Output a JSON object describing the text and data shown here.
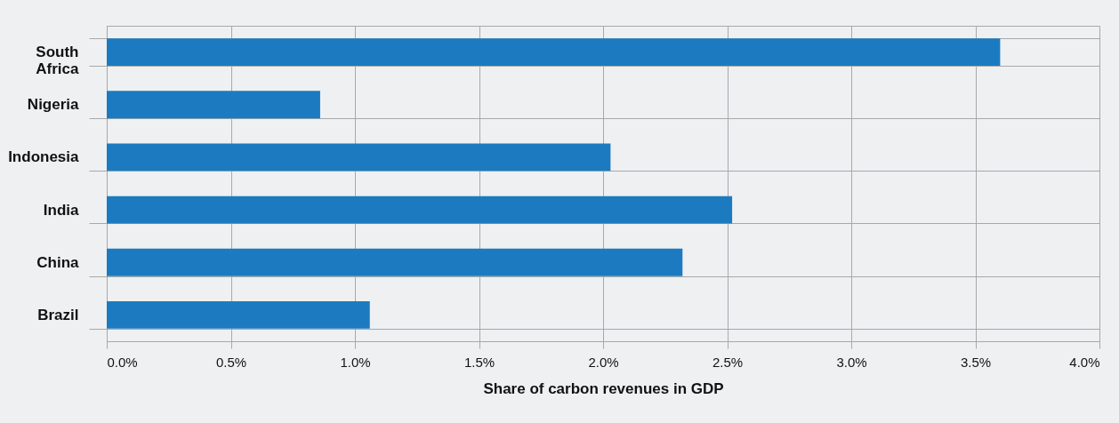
{
  "chart_data": {
    "type": "bar",
    "orientation": "horizontal",
    "xlabel": "Share of carbon revenues in GDP",
    "categories": [
      "South Africa",
      "Nigeria",
      "Indonesia",
      "India",
      "China",
      "Brazil"
    ],
    "values": [
      3.6,
      0.86,
      2.03,
      2.52,
      2.32,
      1.06
    ],
    "color": "#1c7bc0",
    "xlim": [
      0,
      4
    ],
    "xticks": [
      {
        "value": 0,
        "label": "0.0%"
      },
      {
        "value": 0.5,
        "label": "0.5%"
      },
      {
        "value": 1,
        "label": "1.0%"
      },
      {
        "value": 1.5,
        "label": "1.5%"
      },
      {
        "value": 2,
        "label": "2.0%"
      },
      {
        "value": 2.5,
        "label": "2.5%"
      },
      {
        "value": 3,
        "label": "3.0%"
      },
      {
        "value": 3.5,
        "label": "3.5%"
      },
      {
        "value": 4,
        "label": "4.0%"
      }
    ],
    "grid": true
  }
}
